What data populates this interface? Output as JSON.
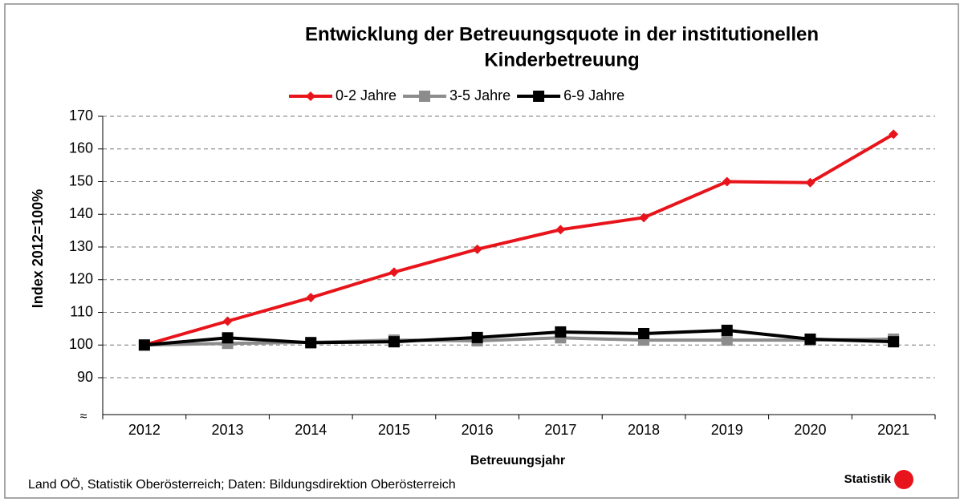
{
  "chart_data": {
    "type": "line",
    "title": [
      "Entwicklung der Betreuungsquote in der institutionellen",
      "Kinderbetreuung"
    ],
    "y_label": "Index 2012=100%",
    "x_label": "Betreuungsjahr",
    "source": "Land OÖ, Statistik Oberösterreich; Daten: Bildungsdirektion Oberösterreich",
    "logo": "Statistik",
    "axis_break": "≈",
    "categories": [
      "2012",
      "2013",
      "2014",
      "2015",
      "2016",
      "2017",
      "2018",
      "2019",
      "2020",
      "2021"
    ],
    "series": [
      {
        "name": "0-2 Jahre",
        "color": "#e8141b",
        "marker": "diamond",
        "values": [
          100,
          107.3,
          114.5,
          122.3,
          129.3,
          135.3,
          139,
          150,
          149.7,
          164.5
        ]
      },
      {
        "name": "3-5 Jahre",
        "color": "#8c8c8c",
        "marker": "square",
        "values": [
          100,
          100.5,
          100.8,
          101.5,
          101.3,
          102.2,
          101.5,
          101.5,
          101.5,
          101.8
        ]
      },
      {
        "name": "6-9 Jahre",
        "color": "#000000",
        "marker": "square",
        "values": [
          100,
          102.2,
          100.7,
          101,
          102.3,
          104,
          103.5,
          104.5,
          101.8,
          101
        ]
      }
    ],
    "ylim": [
      90,
      170
    ],
    "yticks": [
      90,
      100,
      110,
      120,
      130,
      140,
      150,
      160,
      170
    ],
    "grid": true,
    "legend": "top"
  }
}
